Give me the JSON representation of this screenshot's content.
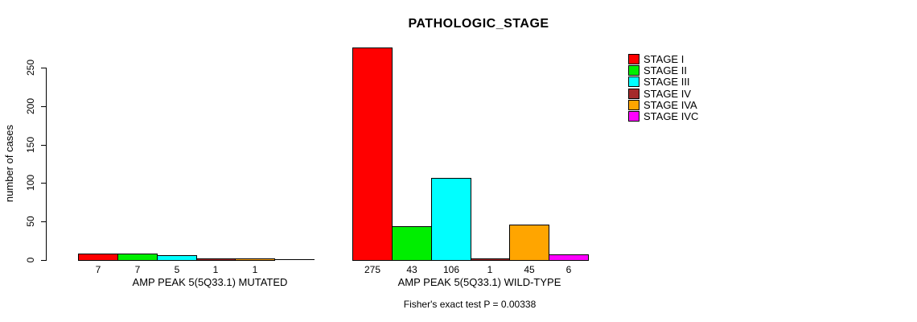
{
  "title": "PATHOLOGIC_STAGE",
  "chart_data": {
    "type": "bar",
    "title": "PATHOLOGIC_STAGE",
    "xlabel": "",
    "ylabel": "number of cases",
    "ylim": [
      0,
      275
    ],
    "yticks": [
      0,
      50,
      100,
      150,
      200,
      250
    ],
    "grid": false,
    "legend_position": "right",
    "categories": [
      "STAGE I",
      "STAGE II",
      "STAGE III",
      "STAGE IV",
      "STAGE IVA",
      "STAGE IVC"
    ],
    "colors": [
      "#FF0000",
      "#00EE00",
      "#00FFFF",
      "#A52A2A",
      "#FFA500",
      "#FF00FF"
    ],
    "groups": [
      {
        "label": "AMP PEAK 5(5Q33.1) MUTATED",
        "values": [
          7,
          7,
          5,
          1,
          1,
          0
        ],
        "bar_labels": [
          "7",
          "7",
          "5",
          "1",
          "1",
          ""
        ]
      },
      {
        "label": "AMP PEAK 5(5Q33.1) WILD-TYPE",
        "values": [
          275,
          43,
          106,
          1,
          45,
          6
        ],
        "bar_labels": [
          "275",
          "43",
          "106",
          "1",
          "45",
          "6"
        ]
      }
    ],
    "annotation": "Fisher's exact test P = 0.00338"
  }
}
